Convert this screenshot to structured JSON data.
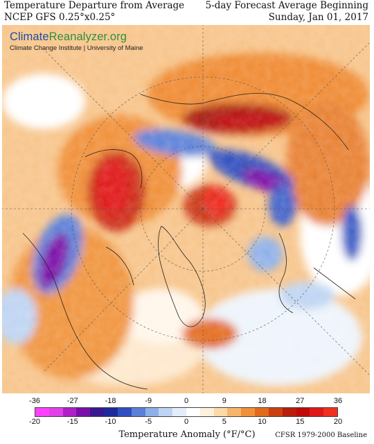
{
  "header": {
    "title": "Temperature Departure from Average",
    "model": "NCEP GFS 0.25°x0.25°",
    "forecast": "5-day Forecast Average Beginning",
    "date": "Sunday, Jan 01, 2017"
  },
  "logo": {
    "brand_part1": "Climate",
    "brand_part2": "Reanalyzer",
    "brand_part3": ".org",
    "subtitle": "Climate Change Institute | University of Maine",
    "brand_colors": {
      "primary": "#1a4f9c",
      "secondary": "#2f8f3c"
    }
  },
  "legend": {
    "fahrenheit_ticks": [
      "-36",
      "-27",
      "-18",
      "-9",
      "0",
      "9",
      "18",
      "27",
      "36"
    ],
    "celsius_ticks": [
      "-20",
      "-15",
      "-10",
      "-5",
      "0",
      "5",
      "10",
      "15",
      "20"
    ],
    "axis_label": "Temperature Anomaly (°F/°C)",
    "baseline": "CFSR 1979-2000 Baseline",
    "colors": [
      "#ff40ff",
      "#e040e8",
      "#b020c8",
      "#7a10a8",
      "#3a1890",
      "#1e2a9a",
      "#2f4fc0",
      "#5a80d8",
      "#8eb0e8",
      "#bed4f2",
      "#e4eefa",
      "#ffffff",
      "#fdf0dc",
      "#fbd9a8",
      "#f7b56c",
      "#f0903a",
      "#e26a1c",
      "#cc4010",
      "#b81e0a",
      "#c00a0a",
      "#e01818",
      "#f03020"
    ]
  }
}
